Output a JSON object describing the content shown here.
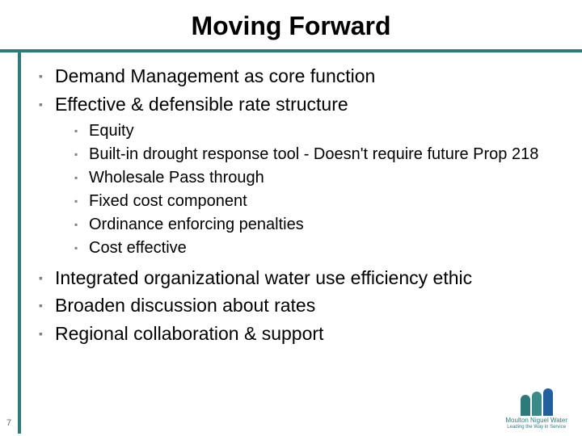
{
  "title": "Moving Forward",
  "bullets": {
    "level1": [
      "Demand Management as core function",
      "Effective & defensible rate structure"
    ],
    "level2": [
      "Equity",
      "Built-in drought response tool - Doesn't require future Prop 218",
      "Wholesale Pass through",
      "Fixed cost component",
      "Ordinance enforcing penalties",
      "Cost effective"
    ],
    "level1b": [
      "Integrated organizational water use efficiency ethic",
      "Broaden discussion about rates",
      "Regional collaboration & support"
    ]
  },
  "pageNumber": "7",
  "logo": {
    "name": "Moulton Niguel Water",
    "tagline": "Leading the Way in Service"
  },
  "colors": {
    "accent": "#2d7a7a",
    "bulletMark": "#808080",
    "text": "#000000",
    "background": "#ffffff"
  },
  "bulletGlyph": "▪"
}
